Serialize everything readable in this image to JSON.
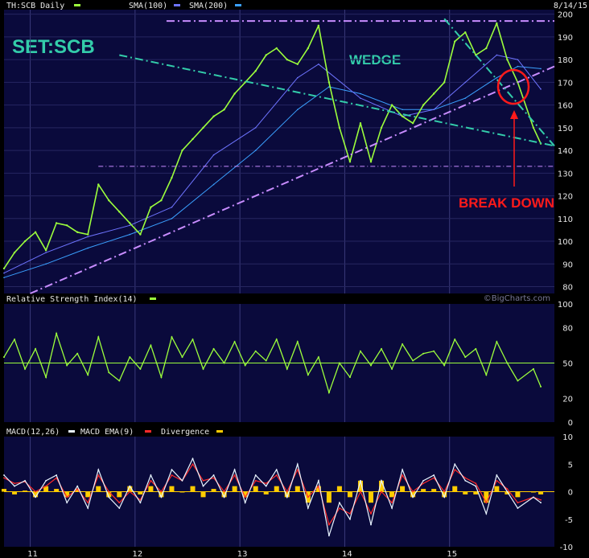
{
  "header": {
    "symbol_label": "TH:SCB Daily",
    "sma100_label": "SMA(100)",
    "sma200_label": "SMA(200)",
    "date": "8/14/15"
  },
  "annotations": {
    "big_title": "SET:SCB",
    "wedge": "WEDGE",
    "break_down": "BREAK DOWN",
    "watermark": "©BigCharts.com"
  },
  "panels": {
    "rsi_label": "Relative Strength Index(14)",
    "macd_label": "MACD(12,26)",
    "macd_ema_label": "MACD EMA(9)",
    "divergence_label": "Divergence"
  },
  "colors": {
    "background": "#000000",
    "panel": "#0a0a3c",
    "price": "#9cff3c",
    "sma100": "#6e74ff",
    "sma200": "#3aa0ff",
    "annotation_teal": "#33ccaa",
    "annotation_violet": "#c88cff",
    "break_red": "#ff1a1a",
    "macd": "#e8f4ff",
    "macd_ema": "#ff2a2a",
    "divergence": "#ffcc00"
  },
  "chart_data": [
    {
      "type": "line",
      "title": "SET:SCB",
      "x_tick_labels": [
        "11",
        "12",
        "13",
        "14",
        "15"
      ],
      "y_ticks": [
        80,
        90,
        100,
        110,
        120,
        130,
        140,
        150,
        160,
        170,
        180,
        190,
        200
      ],
      "ylim": [
        77,
        202
      ],
      "grid": true,
      "series": [
        {
          "name": "TH:SCB Daily",
          "x": [
            2010.5,
            2010.6,
            2010.7,
            2010.8,
            2010.9,
            2011.0,
            2011.1,
            2011.2,
            2011.3,
            2011.4,
            2011.5,
            2011.6,
            2011.7,
            2011.8,
            2011.9,
            2012.0,
            2012.1,
            2012.2,
            2012.3,
            2012.4,
            2012.5,
            2012.6,
            2012.7,
            2012.8,
            2012.9,
            2013.0,
            2013.1,
            2013.2,
            2013.3,
            2013.4,
            2013.5,
            2013.6,
            2013.7,
            2013.8,
            2013.9,
            2014.0,
            2014.1,
            2014.2,
            2014.3,
            2014.4,
            2014.5,
            2014.6,
            2014.7,
            2014.8,
            2014.9,
            2015.0,
            2015.1,
            2015.2,
            2015.3,
            2015.4,
            2015.55,
            2015.62
          ],
          "values": [
            88,
            95,
            100,
            104,
            96,
            108,
            107,
            104,
            103,
            125,
            118,
            113,
            108,
            103,
            115,
            118,
            128,
            140,
            145,
            150,
            155,
            158,
            165,
            170,
            175,
            182,
            185,
            180,
            178,
            185,
            195,
            170,
            150,
            135,
            152,
            135,
            150,
            160,
            155,
            152,
            160,
            165,
            170,
            188,
            192,
            182,
            185,
            196,
            180,
            170,
            150,
            143
          ]
        },
        {
          "name": "SMA(100)",
          "x": [
            2010.5,
            2010.9,
            2011.3,
            2011.7,
            2012.1,
            2012.5,
            2012.9,
            2013.3,
            2013.5,
            2013.9,
            2014.3,
            2014.6,
            2014.9,
            2015.2,
            2015.4,
            2015.62
          ],
          "values": [
            86,
            95,
            102,
            107,
            115,
            138,
            150,
            172,
            178,
            163,
            155,
            158,
            170,
            182,
            180,
            167
          ]
        },
        {
          "name": "SMA(200)",
          "x": [
            2010.5,
            2010.9,
            2011.3,
            2011.7,
            2012.1,
            2012.5,
            2012.9,
            2013.3,
            2013.6,
            2013.9,
            2014.3,
            2014.6,
            2014.9,
            2015.2,
            2015.4,
            2015.62
          ],
          "values": [
            84,
            90,
            97,
            103,
            110,
            125,
            140,
            158,
            168,
            165,
            158,
            158,
            163,
            172,
            177,
            176
          ]
        }
      ]
    },
    {
      "type": "line",
      "title": "Relative Strength Index(14)",
      "y_ticks": [
        0,
        20,
        50,
        80,
        100
      ],
      "ylim": [
        0,
        100
      ],
      "reference_line": 50,
      "series": [
        {
          "name": "Relative Strength Index(14)",
          "x": [
            2010.5,
            2010.6,
            2010.7,
            2010.8,
            2010.9,
            2011.0,
            2011.1,
            2011.2,
            2011.3,
            2011.4,
            2011.5,
            2011.6,
            2011.7,
            2011.8,
            2011.9,
            2012.0,
            2012.1,
            2012.2,
            2012.3,
            2012.4,
            2012.5,
            2012.6,
            2012.7,
            2012.8,
            2012.9,
            2013.0,
            2013.1,
            2013.2,
            2013.3,
            2013.4,
            2013.5,
            2013.6,
            2013.7,
            2013.8,
            2013.9,
            2014.0,
            2014.1,
            2014.2,
            2014.3,
            2014.4,
            2014.5,
            2014.6,
            2014.7,
            2014.8,
            2014.9,
            2015.0,
            2015.1,
            2015.2,
            2015.3,
            2015.4,
            2015.55,
            2015.62
          ],
          "values": [
            55,
            70,
            45,
            62,
            38,
            75,
            48,
            58,
            40,
            72,
            42,
            35,
            55,
            45,
            65,
            38,
            72,
            55,
            70,
            45,
            62,
            50,
            68,
            48,
            60,
            52,
            70,
            45,
            68,
            40,
            55,
            25,
            50,
            38,
            60,
            48,
            62,
            45,
            66,
            52,
            58,
            60,
            48,
            70,
            55,
            62,
            40,
            68,
            50,
            35,
            45,
            30
          ]
        }
      ]
    },
    {
      "type": "line",
      "title": "MACD(12,26)",
      "y_ticks": [
        -10,
        -5,
        0,
        5,
        10
      ],
      "ylim": [
        -10,
        10
      ],
      "series": [
        {
          "name": "MACD(12,26)",
          "x": [
            2010.5,
            2010.6,
            2010.7,
            2010.8,
            2010.9,
            2011.0,
            2011.1,
            2011.2,
            2011.3,
            2011.4,
            2011.5,
            2011.6,
            2011.7,
            2011.8,
            2011.9,
            2012.0,
            2012.1,
            2012.2,
            2012.3,
            2012.4,
            2012.5,
            2012.6,
            2012.7,
            2012.8,
            2012.9,
            2013.0,
            2013.1,
            2013.2,
            2013.3,
            2013.4,
            2013.5,
            2013.6,
            2013.7,
            2013.8,
            2013.9,
            2014.0,
            2014.1,
            2014.2,
            2014.3,
            2014.4,
            2014.5,
            2014.6,
            2014.7,
            2014.8,
            2014.9,
            2015.0,
            2015.1,
            2015.2,
            2015.3,
            2015.4,
            2015.55,
            2015.62
          ],
          "values": [
            3,
            1,
            2,
            -1,
            2,
            3,
            -2,
            1,
            -3,
            4,
            -1,
            -3,
            1,
            -2,
            3,
            -1,
            4,
            2,
            6,
            1,
            3,
            -1,
            4,
            -2,
            3,
            1,
            4,
            -1,
            5,
            -3,
            2,
            -8,
            -2,
            -5,
            2,
            -6,
            2,
            -3,
            4,
            -1,
            2,
            3,
            -1,
            5,
            2,
            1,
            -4,
            3,
            0,
            -3,
            -1,
            -2
          ]
        },
        {
          "name": "MACD EMA(9)",
          "x": [
            2010.5,
            2010.6,
            2010.7,
            2010.8,
            2010.9,
            2011.0,
            2011.1,
            2011.2,
            2011.3,
            2011.4,
            2011.5,
            2011.6,
            2011.7,
            2011.8,
            2011.9,
            2012.0,
            2012.1,
            2012.2,
            2012.3,
            2012.4,
            2012.5,
            2012.6,
            2012.7,
            2012.8,
            2012.9,
            2013.0,
            2013.1,
            2013.2,
            2013.3,
            2013.4,
            2013.5,
            2013.6,
            2013.7,
            2013.8,
            2013.9,
            2014.0,
            2014.1,
            2014.2,
            2014.3,
            2014.4,
            2014.5,
            2014.6,
            2014.7,
            2014.8,
            2014.9,
            2015.0,
            2015.1,
            2015.2,
            2015.3,
            2015.4,
            2015.55,
            2015.62
          ],
          "values": [
            2.5,
            1.5,
            1.8,
            0,
            1,
            2.5,
            -1,
            0.5,
            -2,
            3,
            0,
            -2,
            0,
            -1.5,
            2,
            0,
            3,
            2,
            5,
            2,
            2.5,
            0,
            3,
            -1,
            2,
            1.5,
            3,
            0,
            4,
            -1,
            1,
            -6,
            -3,
            -4,
            0,
            -4,
            0,
            -2,
            3,
            0,
            1.5,
            2.5,
            0,
            4,
            2.5,
            1.5,
            -2,
            2,
            0.5,
            -2,
            -1,
            -1.5
          ]
        },
        {
          "name": "Divergence",
          "x": [
            2010.5,
            2010.6,
            2010.7,
            2010.8,
            2010.9,
            2011.0,
            2011.1,
            2011.2,
            2011.3,
            2011.4,
            2011.5,
            2011.6,
            2011.7,
            2011.8,
            2011.9,
            2012.0,
            2012.1,
            2012.2,
            2012.3,
            2012.4,
            2012.5,
            2012.6,
            2012.7,
            2012.8,
            2012.9,
            2013.0,
            2013.1,
            2013.2,
            2013.3,
            2013.4,
            2013.5,
            2013.6,
            2013.7,
            2013.8,
            2013.9,
            2014.0,
            2014.1,
            2014.2,
            2014.3,
            2014.4,
            2014.5,
            2014.6,
            2014.7,
            2014.8,
            2014.9,
            2015.0,
            2015.1,
            2015.2,
            2015.3,
            2015.4,
            2015.55,
            2015.62
          ],
          "values": [
            0.5,
            -0.5,
            0.2,
            -1,
            1,
            0.5,
            -1,
            0.5,
            -1,
            1,
            -1,
            -1,
            1,
            -0.5,
            1,
            -1,
            1,
            0,
            1,
            -1,
            0.5,
            -1,
            1,
            -1,
            1,
            -0.5,
            1,
            -1,
            1,
            -2,
            1,
            -2,
            1,
            -1,
            2,
            -2,
            2,
            -1,
            1,
            -1,
            0.5,
            0.5,
            -1,
            1,
            -0.5,
            -0.5,
            -2,
            1,
            -0.5,
            -1,
            0,
            -0.5
          ]
        }
      ]
    }
  ],
  "trendlines": [
    {
      "name": "resistance-dashdot",
      "color": "violet",
      "from": [
        2012.05,
        197
      ],
      "to": [
        2015.75,
        197
      ]
    },
    {
      "name": "support-dashdot",
      "color": "violet",
      "from": [
        2011.4,
        133
      ],
      "to": [
        2015.75,
        133
      ]
    },
    {
      "name": "rising-support",
      "color": "violet",
      "from": [
        2010.75,
        77
      ],
      "to": [
        2015.75,
        177
      ]
    },
    {
      "name": "wedge-top",
      "color": "teal",
      "from": [
        2011.6,
        182
      ],
      "to": [
        2015.75,
        142
      ]
    },
    {
      "name": "wedge-top-steep",
      "color": "teal",
      "from": [
        2014.7,
        198
      ],
      "to": [
        2015.75,
        142
      ]
    }
  ]
}
